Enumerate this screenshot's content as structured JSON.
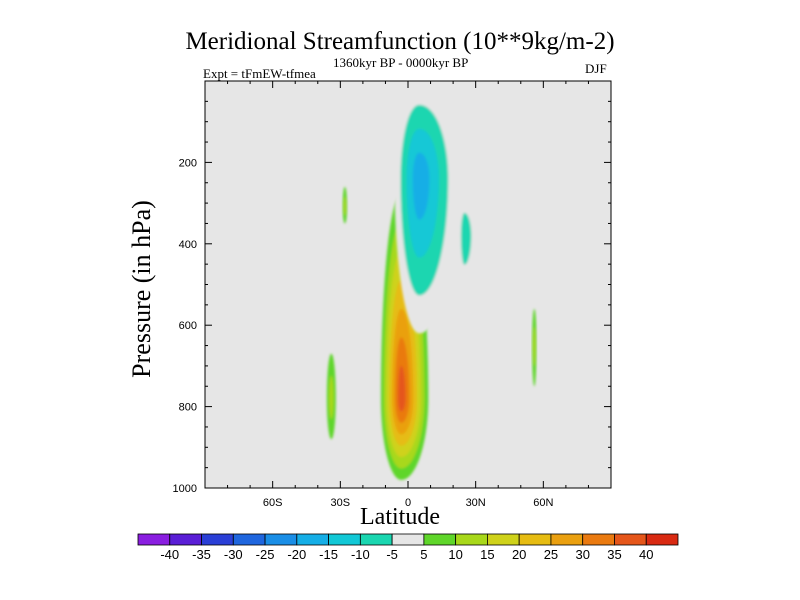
{
  "chart_data": {
    "type": "heatmap",
    "title": "Meridional Streamfunction (10**9kg/m-2)",
    "subtitle_left": "Expt = tFmEW-tfmea",
    "subtitle_center": "1360kyr BP - 0000kyr BP",
    "subtitle_right": "DJF",
    "xlabel": "Latitude",
    "ylabel": "Pressure (in hPa)",
    "xlim": [
      -90,
      90
    ],
    "ylim": [
      1000,
      0
    ],
    "x_ticks": [
      {
        "value": -60,
        "label": "60S"
      },
      {
        "value": -30,
        "label": "30S"
      },
      {
        "value": 0,
        "label": "0"
      },
      {
        "value": 30,
        "label": "30N"
      },
      {
        "value": 60,
        "label": "60N"
      }
    ],
    "y_ticks": [
      {
        "value": 200,
        "label": "200"
      },
      {
        "value": 400,
        "label": "400"
      },
      {
        "value": 600,
        "label": "600"
      },
      {
        "value": 800,
        "label": "800"
      },
      {
        "value": 1000,
        "label": "1000"
      }
    ],
    "colorbar": {
      "labels": [
        "-40",
        "-35",
        "-30",
        "-25",
        "-20",
        "-15",
        "-10",
        "-5",
        "5",
        "10",
        "15",
        "20",
        "25",
        "30",
        "35",
        "40"
      ],
      "colors": [
        "#8a1ee0",
        "#5a1ed6",
        "#2a3fd6",
        "#1f66de",
        "#1a8ee6",
        "#15aee6",
        "#12c8d6",
        "#1ad6b0",
        "#e6e6e6",
        "#5fd62a",
        "#a8d81a",
        "#cfd21a",
        "#e6bc12",
        "#eaa010",
        "#ea7a10",
        "#e5561a",
        "#d92a12"
      ]
    },
    "fields": [
      {
        "name": "positive-cell-equatorial",
        "kind": "positive",
        "peak_value": 35,
        "center_lat": -3,
        "center_p": 780,
        "extent_lat": [
          -12,
          9
        ],
        "extent_p": [
          280,
          980
        ]
      },
      {
        "name": "negative-cell-upper",
        "kind": "negative",
        "peak_value": -20,
        "center_lat": 5,
        "center_p": 240,
        "extent_lat": [
          -6,
          22
        ],
        "extent_p": [
          0,
          620
        ]
      },
      {
        "name": "negative-patch-north-1",
        "kind": "negative",
        "peak_value": -10,
        "center_lat": 25,
        "center_p": 380,
        "extent_lat": [
          22,
          31
        ],
        "extent_p": [
          270,
          520
        ]
      },
      {
        "name": "positive-patch-south-1",
        "kind": "positive",
        "peak_value": 10,
        "center_lat": -34,
        "center_p": 780,
        "extent_lat": [
          -36,
          -32
        ],
        "extent_p": [
          670,
          880
        ]
      },
      {
        "name": "positive-patch-south-2",
        "kind": "positive",
        "peak_value": 10,
        "center_lat": -28,
        "center_p": 310,
        "extent_lat": [
          -29,
          -27
        ],
        "extent_p": [
          260,
          350
        ]
      },
      {
        "name": "positive-patch-north-2",
        "kind": "positive",
        "peak_value": 10,
        "center_lat": 56,
        "center_p": 650,
        "extent_lat": [
          55,
          57
        ],
        "extent_p": [
          560,
          750
        ]
      }
    ]
  }
}
